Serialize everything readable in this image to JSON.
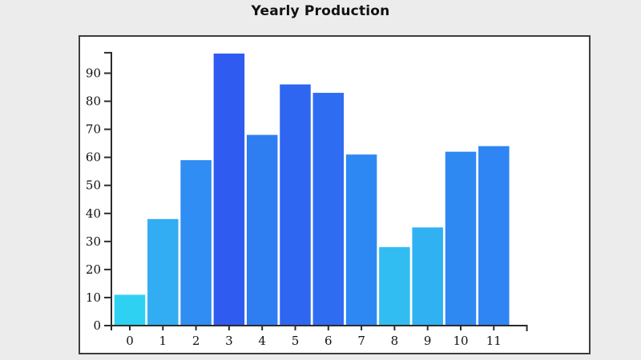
{
  "page": {
    "background_color": "#ececec"
  },
  "chart_data": {
    "type": "bar",
    "title": "Yearly Production",
    "categories": [
      "0",
      "1",
      "2",
      "3",
      "4",
      "5",
      "6",
      "7",
      "8",
      "9",
      "10",
      "11"
    ],
    "values": [
      11,
      38,
      59,
      97,
      68,
      86,
      83,
      61,
      28,
      35,
      62,
      64
    ],
    "bar_colors": [
      "#2ED1F1",
      "#32ACF2",
      "#2F8DF3",
      "#2F5BF0",
      "#2E7EF2",
      "#2F66F1",
      "#2E6CF1",
      "#2E88F3",
      "#31BCF2",
      "#30B1F2",
      "#2E89F3",
      "#2E85F3"
    ],
    "xlabel": "",
    "ylabel": "",
    "yticks": [
      0,
      10,
      20,
      30,
      40,
      50,
      60,
      70,
      80,
      90
    ],
    "ylim": [
      0,
      97.3
    ],
    "grid": false,
    "legend": "none",
    "colors": {
      "axis": "#2b2b2b",
      "tick_label": "#111111",
      "frame_border": "#3d3d3d",
      "plot_background": "#ffffff",
      "title": "#111111"
    }
  }
}
